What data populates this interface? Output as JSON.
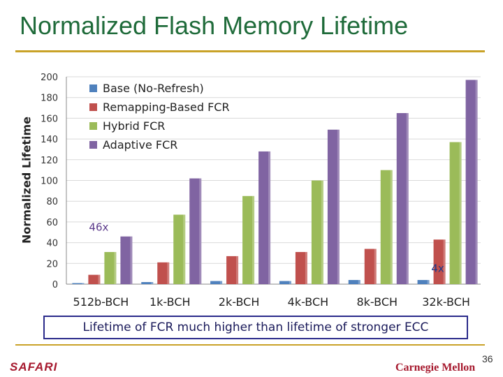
{
  "slide": {
    "title": "Normalized Flash Memory Lifetime",
    "callout": "Lifetime of FCR much higher than lifetime of stronger ECC",
    "page_number": "36",
    "logo_left": "SAFARI",
    "logo_right": "Carnegie Mellon",
    "colors": {
      "title": "#1f6b3a",
      "rule": "#c9a227",
      "callout_border": "#2a2a8a",
      "logo": "#a6192e"
    }
  },
  "chart_data": {
    "type": "bar",
    "title": "",
    "xlabel": "",
    "ylabel": "Normalized Lifetime",
    "ylim": [
      0,
      200
    ],
    "yticks": [
      0,
      20,
      40,
      60,
      80,
      100,
      120,
      140,
      160,
      180,
      200
    ],
    "grid": true,
    "legend_position": "top-left",
    "categories": [
      "512b-BCH",
      "1k-BCH",
      "2k-BCH",
      "4k-BCH",
      "8k-BCH",
      "32k-BCH"
    ],
    "series": [
      {
        "name": "Base (No-Refresh)",
        "color": "#4f81bd",
        "values": [
          1,
          2,
          3,
          3,
          4,
          4
        ]
      },
      {
        "name": "Remapping-Based FCR",
        "color": "#c0504d",
        "values": [
          9,
          21,
          27,
          31,
          34,
          43
        ]
      },
      {
        "name": "Hybrid FCR",
        "color": "#9bbb59",
        "values": [
          31,
          67,
          85,
          100,
          110,
          137
        ]
      },
      {
        "name": "Adaptive FCR",
        "color": "#8064a2",
        "values": [
          46,
          102,
          128,
          149,
          165,
          197
        ]
      }
    ],
    "annotations": [
      {
        "text": "46x",
        "category": "512b-BCH",
        "y": 55,
        "color": "#5b3a8a"
      },
      {
        "text": "4x",
        "category": "32k-BCH",
        "y": 15,
        "color": "#1f3a8a"
      }
    ]
  }
}
